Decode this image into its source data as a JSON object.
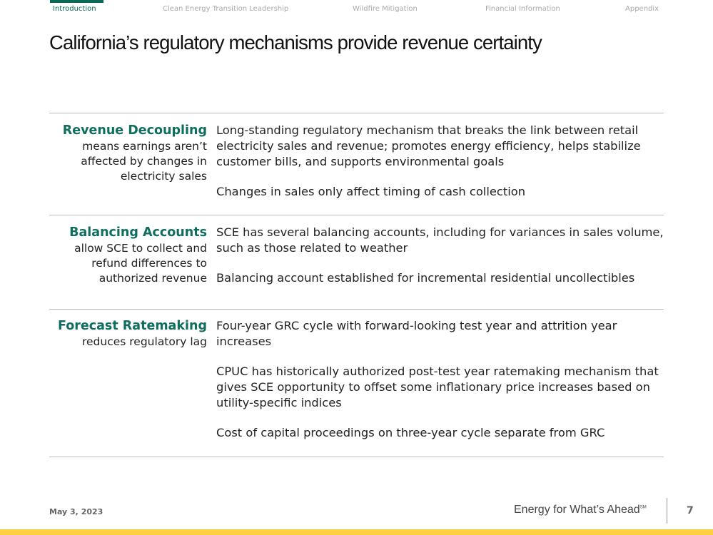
{
  "nav": {
    "items": [
      "Introduction",
      "Clean Energy Transition Leadership",
      "Wildfire Mitigation",
      "Financial Information",
      "Appendix"
    ],
    "active": "Introduction"
  },
  "title": "California’s regulatory mechanisms provide revenue certainty",
  "rows": [
    {
      "head": "Revenue Decoupling",
      "sub": "means earnings aren’t affected by changes in electricity sales",
      "points": [
        "Long-standing regulatory mechanism that breaks the link between retail electricity sales and revenue; promotes energy efficiency, helps stabilize customer bills, and supports environmental goals",
        "Changes in sales only affect timing of cash collection"
      ]
    },
    {
      "head": "Balancing Accounts",
      "sub": "allow SCE to collect and refund differences to authorized revenue",
      "points": [
        "SCE has several balancing accounts, including for variances in sales volume, such as those related to weather",
        "Balancing account established for incremental residential uncollectibles"
      ]
    },
    {
      "head": "Forecast Ratemaking",
      "sub": "reduces regulatory lag",
      "points": [
        "Four-year GRC cycle with forward-looking test year and attrition year increases",
        "CPUC has historically authorized post-test year ratemaking mechanism that gives SCE opportunity to offset some inflationary price increases based on utility-specific indices",
        "Cost of capital proceedings on three-year cycle separate from GRC"
      ]
    }
  ],
  "footer": {
    "date": "May 3, 2023",
    "tagline": "Energy for What’s Ahead",
    "mark": "SM",
    "page": "7"
  },
  "colors": {
    "accent": "#0f6e5e",
    "footer_bar": "#fdd043"
  }
}
